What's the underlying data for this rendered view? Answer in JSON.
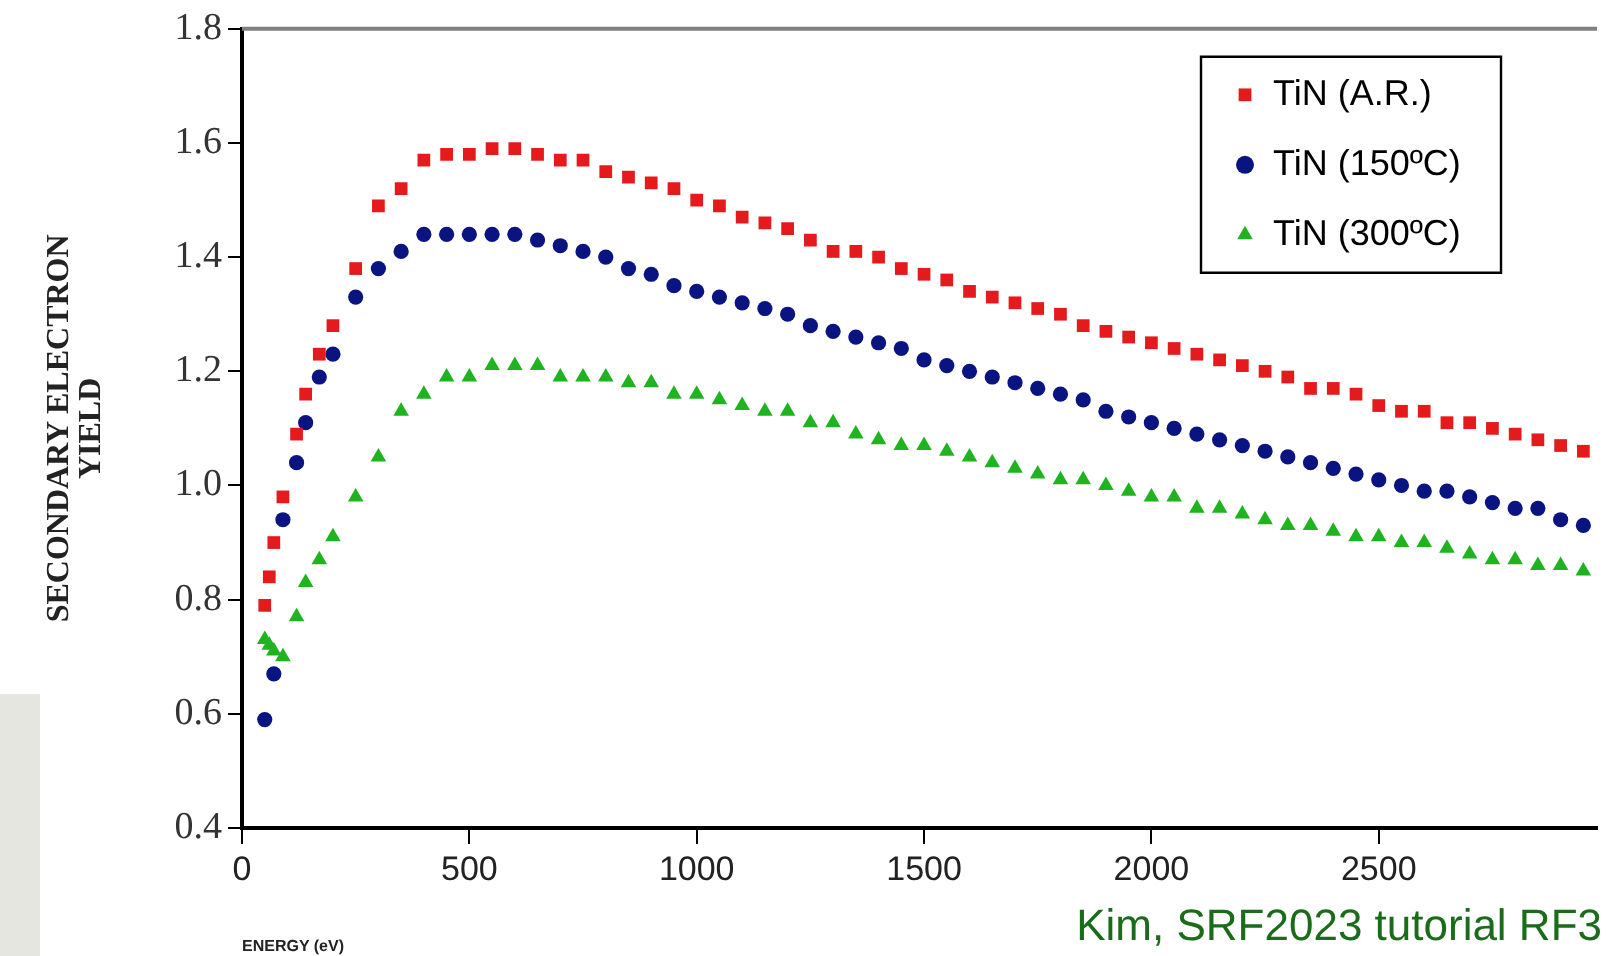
{
  "chart_data": {
    "type": "scatter",
    "xlabel": "ENERGY (eV)",
    "ylabel": "SECONDARY ELECTRON\nYIELD",
    "annotations": [
      "Kim, SRF2023 tutorial RF3"
    ],
    "xlim": [
      0,
      2980
    ],
    "xticks": [
      0,
      500,
      1000,
      1500,
      2000,
      2500
    ],
    "ylim": [
      0.4,
      1.8
    ],
    "yticks": [
      0.4,
      0.6,
      0.8,
      {
        "value": 1,
        "label": "1.0"
      },
      1.2,
      1.4,
      1.6,
      1.8
    ],
    "grid": false,
    "legend": "top right",
    "series": [
      {
        "name": "TiN (A.R.)",
        "color": "#e41a1c",
        "marker": "square",
        "x": [
          50,
          60,
          70,
          90,
          120,
          140,
          170,
          200,
          250,
          300,
          350,
          400,
          450,
          500,
          550,
          600,
          650,
          700,
          750,
          800,
          850,
          900,
          950,
          1000,
          1050,
          1100,
          1150,
          1200,
          1250,
          1300,
          1350,
          1400,
          1450,
          1500,
          1550,
          1600,
          1650,
          1700,
          1750,
          1800,
          1850,
          1900,
          1950,
          2000,
          2050,
          2100,
          2150,
          2200,
          2250,
          2300,
          2350,
          2400,
          2450,
          2500,
          2550,
          2600,
          2650,
          2700,
          2750,
          2800,
          2850,
          2900,
          2950
        ],
        "values": [
          0.79,
          0.84,
          0.9,
          0.98,
          1.09,
          1.16,
          1.23,
          1.28,
          1.38,
          1.49,
          1.52,
          1.57,
          1.58,
          1.58,
          1.59,
          1.59,
          1.58,
          1.57,
          1.57,
          1.55,
          1.54,
          1.53,
          1.52,
          1.5,
          1.49,
          1.47,
          1.46,
          1.45,
          1.43,
          1.41,
          1.41,
          1.4,
          1.38,
          1.37,
          1.36,
          1.34,
          1.33,
          1.32,
          1.31,
          1.3,
          1.28,
          1.27,
          1.26,
          1.25,
          1.24,
          1.23,
          1.22,
          1.21,
          1.2,
          1.19,
          1.17,
          1.17,
          1.16,
          1.14,
          1.13,
          1.13,
          1.11,
          1.11,
          1.1,
          1.09,
          1.08,
          1.07,
          1.06
        ]
      },
      {
        "name": "TiN (150ºC)",
        "color": "#0a1480",
        "marker": "circle",
        "x": [
          50,
          70,
          90,
          120,
          140,
          170,
          200,
          250,
          300,
          350,
          400,
          450,
          500,
          550,
          600,
          650,
          700,
          750,
          800,
          850,
          900,
          950,
          1000,
          1050,
          1100,
          1150,
          1200,
          1250,
          1300,
          1350,
          1400,
          1450,
          1500,
          1550,
          1600,
          1650,
          1700,
          1750,
          1800,
          1850,
          1900,
          1950,
          2000,
          2050,
          2100,
          2150,
          2200,
          2250,
          2300,
          2350,
          2400,
          2450,
          2500,
          2550,
          2600,
          2650,
          2700,
          2750,
          2800,
          2850,
          2900,
          2950
        ],
        "values": [
          0.59,
          0.67,
          0.94,
          1.04,
          1.11,
          1.19,
          1.23,
          1.33,
          1.38,
          1.41,
          1.44,
          1.44,
          1.44,
          1.44,
          1.44,
          1.43,
          1.42,
          1.41,
          1.4,
          1.38,
          1.37,
          1.35,
          1.34,
          1.33,
          1.32,
          1.31,
          1.3,
          1.28,
          1.27,
          1.26,
          1.25,
          1.24,
          1.22,
          1.21,
          1.2,
          1.19,
          1.18,
          1.17,
          1.16,
          1.15,
          1.13,
          1.12,
          1.11,
          1.1,
          1.09,
          1.08,
          1.07,
          1.06,
          1.05,
          1.04,
          1.03,
          1.02,
          1.01,
          1.0,
          0.99,
          0.99,
          0.98,
          0.97,
          0.96,
          0.96,
          0.94,
          0.93
        ]
      },
      {
        "name": "TiN (300ºC)",
        "color": "#1fb31f",
        "marker": "triangle",
        "x": [
          50,
          60,
          70,
          90,
          120,
          140,
          170,
          200,
          250,
          300,
          350,
          400,
          450,
          500,
          550,
          600,
          650,
          700,
          750,
          800,
          850,
          900,
          950,
          1000,
          1050,
          1100,
          1150,
          1200,
          1250,
          1300,
          1350,
          1400,
          1450,
          1500,
          1550,
          1600,
          1650,
          1700,
          1750,
          1800,
          1850,
          1900,
          1950,
          2000,
          2050,
          2100,
          2150,
          2200,
          2250,
          2300,
          2350,
          2400,
          2450,
          2500,
          2550,
          2600,
          2650,
          2700,
          2750,
          2800,
          2850,
          2900,
          2950
        ],
        "values": [
          0.73,
          0.72,
          0.71,
          0.7,
          0.77,
          0.83,
          0.87,
          0.91,
          0.98,
          1.05,
          1.13,
          1.16,
          1.19,
          1.19,
          1.21,
          1.21,
          1.21,
          1.19,
          1.19,
          1.19,
          1.18,
          1.18,
          1.16,
          1.16,
          1.15,
          1.14,
          1.13,
          1.13,
          1.11,
          1.11,
          1.09,
          1.08,
          1.07,
          1.07,
          1.06,
          1.05,
          1.04,
          1.03,
          1.02,
          1.01,
          1.01,
          1.0,
          0.99,
          0.98,
          0.98,
          0.96,
          0.96,
          0.95,
          0.94,
          0.93,
          0.93,
          0.92,
          0.91,
          0.91,
          0.9,
          0.9,
          0.89,
          0.88,
          0.87,
          0.87,
          0.86,
          0.86,
          0.85
        ]
      }
    ]
  }
}
